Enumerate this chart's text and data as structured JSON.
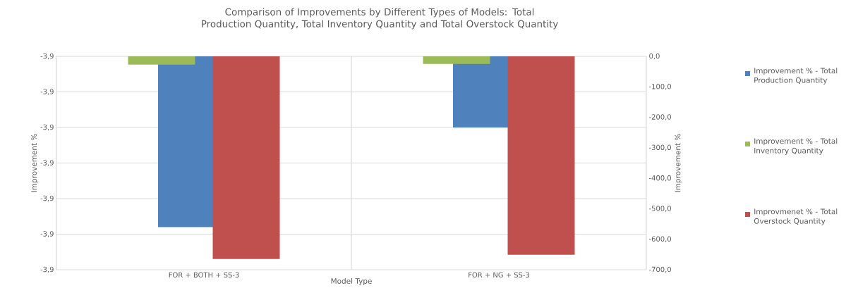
{
  "chart_data": {
    "type": "bar",
    "title": "Comparison of Improvements by Different Types of Models: Total Production Quantity, Total Inventory Quantity and Total Overstock Quantity",
    "xlabel": "Model Type",
    "ylabel": "Improvement %",
    "y2label": "Improvement %",
    "categories": [
      "FOR + BOTH + SS-3",
      "FOR + NG + SS-3"
    ],
    "series": [
      {
        "name": "Improvement % - Total Production Quantity",
        "color": "#4f81bd",
        "values": [
          -3.9048,
          -3.902
        ]
      },
      {
        "name": "Improvement % - Total Inventory Quantity",
        "color": "#9bbb59",
        "values": [
          -27,
          -25
        ],
        "axis": "y2"
      },
      {
        "name": "Improvmenet % - Total Overstock Quantity",
        "color": "#c0504d",
        "values": [
          -665,
          -651
        ],
        "axis": "y2"
      }
    ],
    "ylim": [
      -3.906,
      -3.9
    ],
    "yticks": [
      {
        "value": -3.906,
        "label": "-3,9"
      },
      {
        "value": -3.905,
        "label": "-3,9"
      },
      {
        "value": -3.904,
        "label": "-3,9"
      },
      {
        "value": -3.903,
        "label": "-3,9"
      },
      {
        "value": -3.902,
        "label": "-3,9"
      },
      {
        "value": -3.901,
        "label": "-3,9"
      },
      {
        "value": -3.9,
        "label": "-3,9"
      }
    ],
    "y2lim": [
      -700,
      0
    ],
    "y2ticks": [
      {
        "value": -700,
        "label": "-700,0"
      },
      {
        "value": -600,
        "label": "-600,0"
      },
      {
        "value": -500,
        "label": "-500,0"
      },
      {
        "value": -400,
        "label": "-400,0"
      },
      {
        "value": -300,
        "label": "-300,0"
      },
      {
        "value": -200,
        "label": "-200,0"
      },
      {
        "value": -100,
        "label": "-100,0"
      },
      {
        "value": 0,
        "label": "0,0"
      }
    ],
    "grid": true,
    "legend": "right"
  }
}
